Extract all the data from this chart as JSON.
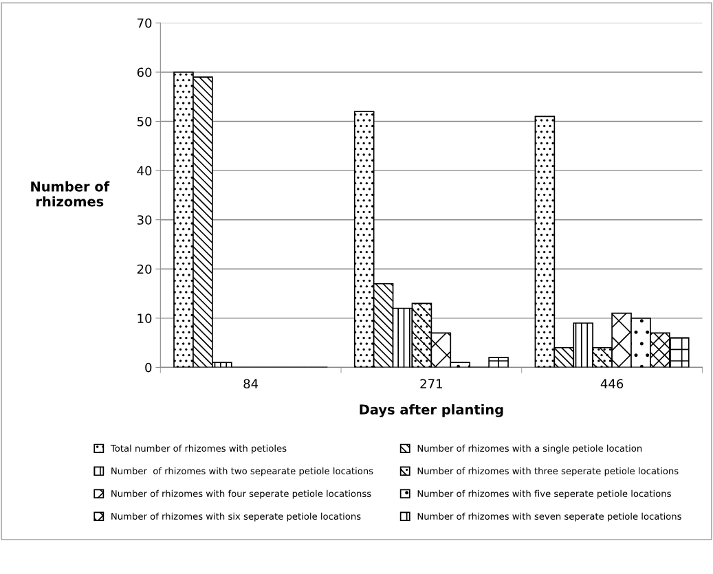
{
  "chart_data": {
    "type": "bar",
    "xlabel": "Days after planting",
    "ylabel": "Number of\nrhizomes",
    "categories": [
      "84",
      "271",
      "446"
    ],
    "series": [
      {
        "name": "Total number of rhizomes with petioles",
        "color": "#000000",
        "values": [
          60,
          52,
          51
        ]
      },
      {
        "name": "Number of rhizomes with a single petiole location",
        "color": "#000000",
        "values": [
          59,
          17,
          4
        ]
      },
      {
        "name": "Number  of rhizomes with two sepearate petiole locations",
        "color": "#000000",
        "values": [
          1,
          12,
          9
        ]
      },
      {
        "name": "Number of rhizomes with three seperate petiole locations",
        "color": "#000000",
        "values": [
          0,
          13,
          4
        ]
      },
      {
        "name": "Number of rhizomes with four seperate petiole locationss",
        "color": "#000000",
        "values": [
          0,
          7,
          11
        ]
      },
      {
        "name": "Number of rhizomes with five seperate petiole locations",
        "color": "#000000",
        "values": [
          0,
          1,
          10
        ]
      },
      {
        "name": "Number of rhizomes with six seperate petiole locations",
        "color": "#000000",
        "values": [
          0,
          0,
          7
        ]
      },
      {
        "name": "Number of rhizomes with seven seperate petiole locations",
        "color": "#000000",
        "values": [
          0,
          2,
          6
        ]
      }
    ],
    "ylim": [
      0,
      70
    ],
    "yticks": [
      0,
      10,
      20,
      30,
      40,
      50,
      60,
      70
    ],
    "grid": "y",
    "legend": "bottom"
  }
}
